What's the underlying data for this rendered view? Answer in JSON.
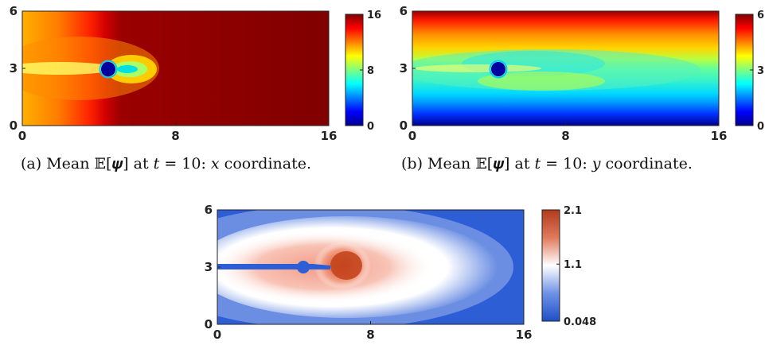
{
  "chart_data": [
    {
      "type": "heatmap",
      "caption": "(a) Mean 𝔼[𝝍] at 𝑡 = 10: 𝑥 coordinate.",
      "xlim": [
        0,
        16
      ],
      "ylim": [
        0,
        6
      ],
      "x_ticks": [
        "0",
        "8",
        "16"
      ],
      "y_ticks": [
        "0",
        "3",
        "6"
      ],
      "colorbar": {
        "colormap": "jet",
        "range": [
          0,
          16
        ],
        "ticks": [
          "0",
          "8",
          "16"
        ]
      },
      "features": {
        "obstacle_center": [
          4.3,
          3.0
        ],
        "obstacle_radius": 0.3
      }
    },
    {
      "type": "heatmap",
      "caption": "(b) Mean 𝔼[𝝍] at 𝑡 = 10: 𝑦 coordinate.",
      "xlim": [
        0,
        16
      ],
      "ylim": [
        0,
        6
      ],
      "x_ticks": [
        "0",
        "8",
        "16"
      ],
      "y_ticks": [
        "0",
        "3",
        "6"
      ],
      "colorbar": {
        "colormap": "jet",
        "range": [
          0,
          6
        ],
        "ticks": [
          "0",
          "3",
          "6"
        ]
      },
      "features": {
        "obstacle_center": [
          4.3,
          3.0
        ],
        "obstacle_radius": 0.3
      }
    },
    {
      "type": "heatmap",
      "caption": "",
      "xlim": [
        0,
        16
      ],
      "ylim": [
        0,
        6
      ],
      "x_ticks": [
        "0",
        "8",
        "16"
      ],
      "y_ticks": [
        "0",
        "3",
        "6"
      ],
      "colorbar": {
        "colormap": "diverging blue-white-red",
        "range": [
          0.048,
          2.1
        ],
        "ticks": [
          "0.048",
          "1.1",
          "2.1"
        ]
      },
      "features": {
        "obstacle_center": [
          4.3,
          3.0
        ],
        "obstacle_radius": 0.3
      }
    }
  ],
  "colors": {
    "jet_dark_red": "#800000",
    "jet_red": "#ff0000",
    "jet_yellow": "#ffff00",
    "jet_cyan": "#00ffff",
    "jet_blue": "#0000ff",
    "jet_dark_blue": "#00008f",
    "div_blue": "#2a5cd6",
    "div_white": "#ffffff",
    "div_red": "#b23a1c"
  }
}
